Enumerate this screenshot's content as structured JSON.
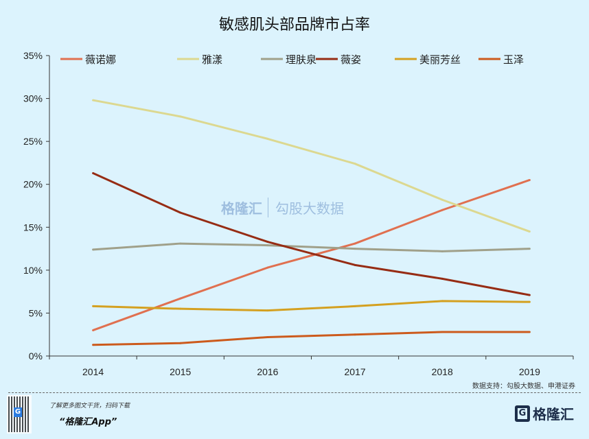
{
  "chart_data": {
    "type": "line",
    "title": "敏感肌头部品牌市占率",
    "categories": [
      "2014",
      "2015",
      "2016",
      "2017",
      "2018",
      "2019"
    ],
    "ylim": [
      0,
      35
    ],
    "yticks": [
      "0%",
      "5%",
      "10%",
      "15%",
      "20%",
      "25%",
      "30%",
      "35%"
    ],
    "yunit": "%",
    "grid": false,
    "legend": "top",
    "series": [
      {
        "name": "薇诺娜",
        "color": "#e07050",
        "values": [
          3.0,
          6.7,
          10.3,
          13.1,
          17.0,
          20.5
        ]
      },
      {
        "name": "雅漾",
        "color": "#dcd890",
        "values": [
          29.8,
          27.9,
          25.3,
          22.4,
          18.2,
          14.5
        ]
      },
      {
        "name": "理肤泉",
        "color": "#a0a08a",
        "values": [
          12.4,
          13.1,
          12.9,
          12.5,
          12.2,
          12.5
        ]
      },
      {
        "name": "薇姿",
        "color": "#962c14",
        "values": [
          21.3,
          16.7,
          13.3,
          10.6,
          9.0,
          7.1
        ]
      },
      {
        "name": "美丽芳丝",
        "color": "#d4a020",
        "values": [
          5.8,
          5.5,
          5.3,
          5.8,
          6.4,
          6.3
        ]
      },
      {
        "name": "玉泽",
        "color": "#cc5a1c",
        "values": [
          1.3,
          1.5,
          2.2,
          2.5,
          2.8,
          2.8
        ]
      }
    ]
  },
  "source": "数据支持：勾股大数据、申港证券",
  "watermark": {
    "brand": "格隆汇",
    "partner": "勾股大数据"
  },
  "footer": {
    "promo_line": "了解更多图文干货，扫码下载",
    "app_name": "“格隆汇App”",
    "logo_text": "格隆汇",
    "logo_glyph": "G"
  }
}
